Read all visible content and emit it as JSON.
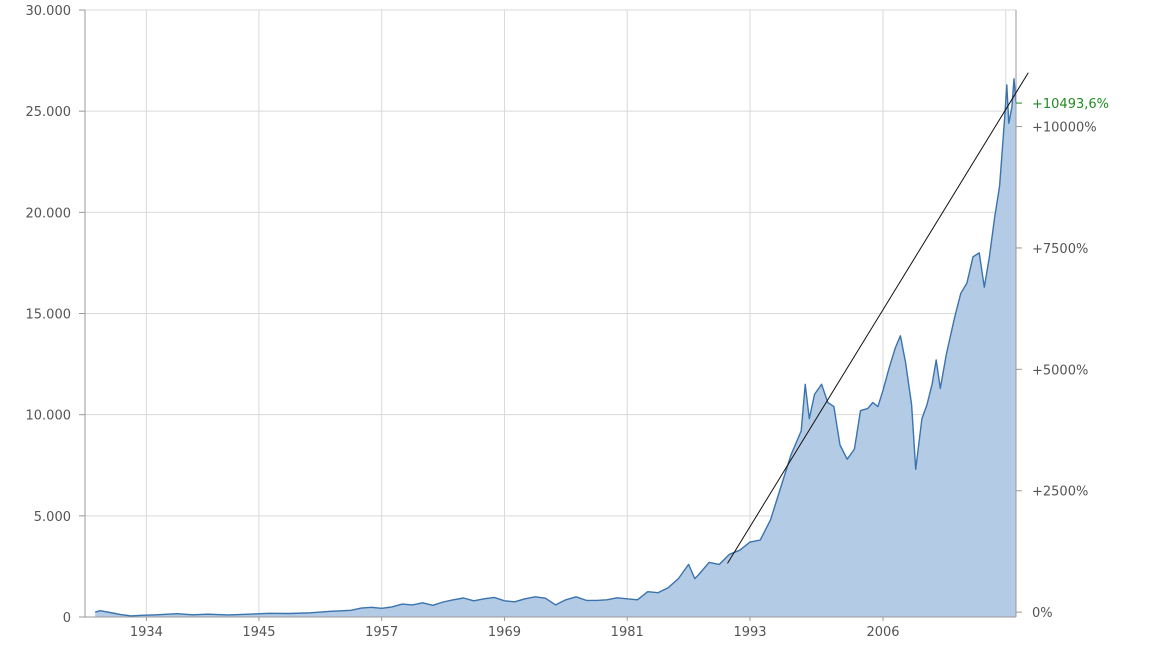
{
  "chart_data": {
    "type": "area",
    "x_range": [
      1928,
      2019
    ],
    "y_range": [
      0,
      30000
    ],
    "y_ticks": [
      {
        "value": 0,
        "label": "0"
      },
      {
        "value": 5000,
        "label": "5.000"
      },
      {
        "value": 10000,
        "label": "10.000"
      },
      {
        "value": 15000,
        "label": "15.000"
      },
      {
        "value": 20000,
        "label": "20.000"
      },
      {
        "value": 25000,
        "label": "25.000"
      },
      {
        "value": 30000,
        "label": "30.000"
      }
    ],
    "x_ticks": [
      {
        "value": 1934,
        "label": "1934"
      },
      {
        "value": 1945,
        "label": "1945"
      },
      {
        "value": 1957,
        "label": "1957"
      },
      {
        "value": 1969,
        "label": "1969"
      },
      {
        "value": 1981,
        "label": "1981"
      },
      {
        "value": 1993,
        "label": "1993"
      },
      {
        "value": 2006,
        "label": "2006"
      }
    ],
    "x_gridlines": [
      1934,
      1945,
      1957,
      1969,
      1981,
      1993,
      2006,
      2018
    ],
    "pct_axis": {
      "base_value": 240,
      "ticks": [
        {
          "value": 0,
          "label": "0%"
        },
        {
          "value": 2500,
          "label": "+2500%"
        },
        {
          "value": 5000,
          "label": "+5000%"
        },
        {
          "value": 7500,
          "label": "+7500%"
        },
        {
          "value": 10000,
          "label": "+10000%"
        }
      ]
    },
    "last_change": {
      "label": "+10493,6%",
      "value": 25400,
      "color": "#228b22"
    },
    "trend_line": {
      "from": [
        1990.8,
        2650
      ],
      "to": [
        2020.2,
        26900
      ]
    },
    "series": [
      {
        "area_color": "#b3cbe5",
        "line_color": "#3a73ad",
        "points": [
          [
            1929.0,
            240
          ],
          [
            1929.5,
            310
          ],
          [
            1930.0,
            260
          ],
          [
            1930.7,
            200
          ],
          [
            1931.5,
            120
          ],
          [
            1932.5,
            55
          ],
          [
            1933.5,
            85
          ],
          [
            1935.0,
            110
          ],
          [
            1937.0,
            165
          ],
          [
            1938.5,
            110
          ],
          [
            1940.0,
            140
          ],
          [
            1942.0,
            105
          ],
          [
            1944.0,
            140
          ],
          [
            1946.0,
            185
          ],
          [
            1948.0,
            175
          ],
          [
            1950.0,
            210
          ],
          [
            1952.0,
            280
          ],
          [
            1954.0,
            330
          ],
          [
            1955.0,
            440
          ],
          [
            1956.0,
            480
          ],
          [
            1957.0,
            430
          ],
          [
            1958.0,
            500
          ],
          [
            1959.0,
            640
          ],
          [
            1960.0,
            600
          ],
          [
            1961.0,
            700
          ],
          [
            1962.0,
            580
          ],
          [
            1963.0,
            740
          ],
          [
            1964.0,
            850
          ],
          [
            1965.0,
            940
          ],
          [
            1966.0,
            800
          ],
          [
            1967.0,
            900
          ],
          [
            1968.0,
            970
          ],
          [
            1969.0,
            800
          ],
          [
            1970.0,
            750
          ],
          [
            1971.0,
            900
          ],
          [
            1972.0,
            1000
          ],
          [
            1973.0,
            930
          ],
          [
            1974.0,
            600
          ],
          [
            1975.0,
            850
          ],
          [
            1976.0,
            1000
          ],
          [
            1977.0,
            820
          ],
          [
            1978.0,
            820
          ],
          [
            1979.0,
            850
          ],
          [
            1980.0,
            950
          ],
          [
            1981.0,
            900
          ],
          [
            1982.0,
            850
          ],
          [
            1983.0,
            1250
          ],
          [
            1984.0,
            1200
          ],
          [
            1985.0,
            1450
          ],
          [
            1986.0,
            1900
          ],
          [
            1987.0,
            2600
          ],
          [
            1987.6,
            1900
          ],
          [
            1988.0,
            2100
          ],
          [
            1989.0,
            2700
          ],
          [
            1990.0,
            2600
          ],
          [
            1991.0,
            3100
          ],
          [
            1992.0,
            3300
          ],
          [
            1993.0,
            3700
          ],
          [
            1994.0,
            3800
          ],
          [
            1995.0,
            4800
          ],
          [
            1996.0,
            6400
          ],
          [
            1997.0,
            8000
          ],
          [
            1998.0,
            9200
          ],
          [
            1998.4,
            11500
          ],
          [
            1998.8,
            9800
          ],
          [
            1999.3,
            11000
          ],
          [
            2000.0,
            11500
          ],
          [
            2000.6,
            10600
          ],
          [
            2001.2,
            10400
          ],
          [
            2001.8,
            8500
          ],
          [
            2002.5,
            7800
          ],
          [
            2003.2,
            8300
          ],
          [
            2003.8,
            10200
          ],
          [
            2004.5,
            10300
          ],
          [
            2005.0,
            10600
          ],
          [
            2005.5,
            10400
          ],
          [
            2006.0,
            11200
          ],
          [
            2006.6,
            12300
          ],
          [
            2007.2,
            13300
          ],
          [
            2007.7,
            13900
          ],
          [
            2008.2,
            12600
          ],
          [
            2008.8,
            10500
          ],
          [
            2009.2,
            7300
          ],
          [
            2009.8,
            9800
          ],
          [
            2010.3,
            10500
          ],
          [
            2010.8,
            11500
          ],
          [
            2011.2,
            12700
          ],
          [
            2011.6,
            11300
          ],
          [
            2012.2,
            13000
          ],
          [
            2013.0,
            14800
          ],
          [
            2013.6,
            16000
          ],
          [
            2014.2,
            16500
          ],
          [
            2014.8,
            17800
          ],
          [
            2015.4,
            18000
          ],
          [
            2015.9,
            16300
          ],
          [
            2016.4,
            17800
          ],
          [
            2016.9,
            19700
          ],
          [
            2017.4,
            21300
          ],
          [
            2017.9,
            24700
          ],
          [
            2018.1,
            26300
          ],
          [
            2018.3,
            24400
          ],
          [
            2018.6,
            25200
          ],
          [
            2018.8,
            26600
          ],
          [
            2019.0,
            25400
          ]
        ]
      }
    ]
  }
}
